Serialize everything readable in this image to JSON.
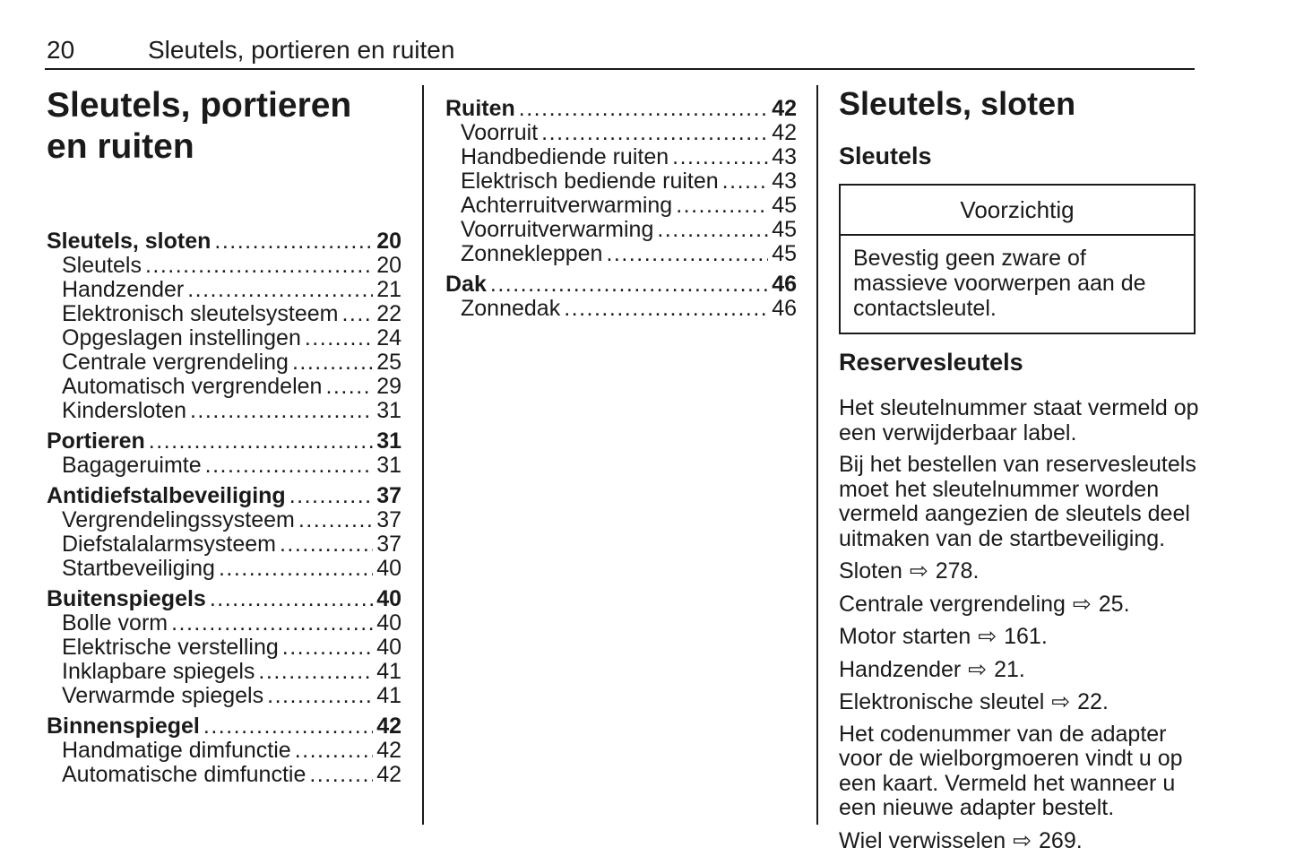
{
  "header": {
    "page_number": "20",
    "chapter_title": "Sleutels, portieren en ruiten"
  },
  "left_column": {
    "title_line1": "Sleutels, portieren",
    "title_line2": "en ruiten",
    "toc": [
      {
        "label": "Sleutels, sloten",
        "page": "20",
        "bold": true,
        "sub": false
      },
      {
        "label": "Sleutels",
        "page": "20",
        "bold": false,
        "sub": true
      },
      {
        "label": "Handzender",
        "page": "21",
        "bold": false,
        "sub": true
      },
      {
        "label": "Elektronisch sleutelsysteem",
        "page": "22",
        "bold": false,
        "sub": true
      },
      {
        "label": "Opgeslagen instellingen",
        "page": "24",
        "bold": false,
        "sub": true
      },
      {
        "label": "Centrale vergrendeling",
        "page": "25",
        "bold": false,
        "sub": true
      },
      {
        "label": "Automatisch vergrendelen",
        "page": "29",
        "bold": false,
        "sub": true
      },
      {
        "label": "Kindersloten",
        "page": "31",
        "bold": false,
        "sub": true
      },
      {
        "label": "Portieren",
        "page": "31",
        "bold": true,
        "sub": false
      },
      {
        "label": "Bagageruimte",
        "page": "31",
        "bold": false,
        "sub": true
      },
      {
        "label": "Antidiefstalbeveiliging",
        "page": "37",
        "bold": true,
        "sub": false
      },
      {
        "label": "Vergrendelingssysteem",
        "page": "37",
        "bold": false,
        "sub": true
      },
      {
        "label": "Diefstalalarmsysteem",
        "page": "37",
        "bold": false,
        "sub": true
      },
      {
        "label": "Startbeveiliging",
        "page": "40",
        "bold": false,
        "sub": true
      },
      {
        "label": "Buitenspiegels",
        "page": "40",
        "bold": true,
        "sub": false
      },
      {
        "label": "Bolle vorm",
        "page": "40",
        "bold": false,
        "sub": true
      },
      {
        "label": "Elektrische verstelling",
        "page": "40",
        "bold": false,
        "sub": true
      },
      {
        "label": "Inklapbare spiegels",
        "page": "41",
        "bold": false,
        "sub": true
      },
      {
        "label": "Verwarmde spiegels",
        "page": "41",
        "bold": false,
        "sub": true
      },
      {
        "label": "Binnenspiegel",
        "page": "42",
        "bold": true,
        "sub": false
      },
      {
        "label": "Handmatige dimfunctie",
        "page": "42",
        "bold": false,
        "sub": true
      },
      {
        "label": "Automatische dimfunctie",
        "page": "42",
        "bold": false,
        "sub": true
      }
    ]
  },
  "middle_column": {
    "toc": [
      {
        "label": "Ruiten",
        "page": "42",
        "bold": true,
        "sub": false
      },
      {
        "label": "Voorruit",
        "page": "42",
        "bold": false,
        "sub": true
      },
      {
        "label": "Handbediende ruiten",
        "page": "43",
        "bold": false,
        "sub": true
      },
      {
        "label": "Elektrisch bediende ruiten",
        "page": "43",
        "bold": false,
        "sub": true
      },
      {
        "label": "Achterruitverwarming",
        "page": "45",
        "bold": false,
        "sub": true
      },
      {
        "label": "Voorruitverwarming",
        "page": "45",
        "bold": false,
        "sub": true
      },
      {
        "label": "Zonnekleppen",
        "page": "45",
        "bold": false,
        "sub": true
      },
      {
        "label": "Dak",
        "page": "46",
        "bold": true,
        "sub": false
      },
      {
        "label": "Zonnedak",
        "page": "46",
        "bold": false,
        "sub": true
      }
    ]
  },
  "right_column": {
    "section_title": "Sleutels, sloten",
    "subsection_title": "Sleutels",
    "caution": {
      "title": "Voorzichtig",
      "body": "Bevestig geen zware of massieve voorwerpen aan de contactsleutel."
    },
    "subheading": "Reservesleutels",
    "blocks": [
      {
        "type": "para",
        "text": "Het sleutelnummer staat vermeld op een verwijderbaar label."
      },
      {
        "type": "para",
        "text": "Bij het bestellen van reservesleutels moet het sleutelnummer worden vermeld aangezien de sleutels deel uitmaken van de startbeveiliging."
      },
      {
        "type": "ref",
        "label": "Sloten",
        "page": "278"
      },
      {
        "type": "ref",
        "label": "Centrale vergrendeling",
        "page": "25"
      },
      {
        "type": "ref",
        "label": "Motor starten",
        "page": "161"
      },
      {
        "type": "ref",
        "label": "Handzender",
        "page": "21"
      },
      {
        "type": "ref",
        "label": "Elektronische sleutel",
        "page": "22"
      },
      {
        "type": "para",
        "text": "Het codenummer van de adapter voor de wielborgmoeren vindt u op een kaart. Vermeld het wanneer u een nieuwe adapter bestelt."
      },
      {
        "type": "ref",
        "label": "Wiel verwisselen",
        "page": "269"
      }
    ]
  },
  "icons": {
    "page_ref_arrow": "⇨"
  },
  "colors": {
    "text": "#1a1a1a",
    "background": "#ffffff",
    "rule": "#1a1a1a"
  }
}
